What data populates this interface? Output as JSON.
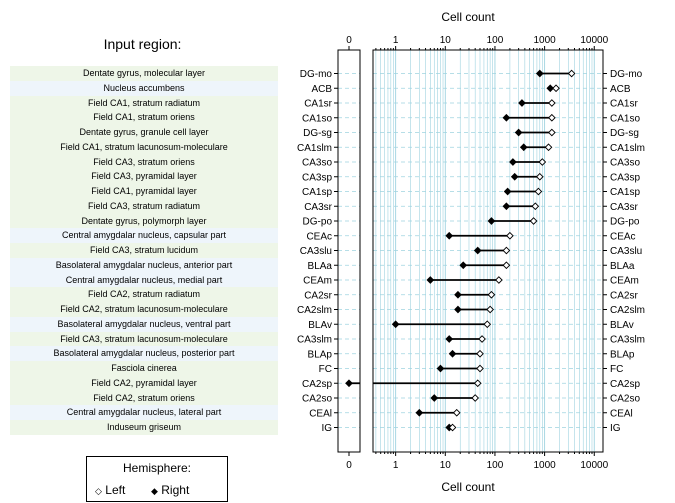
{
  "page": {
    "title": "Input region:"
  },
  "legend": {
    "title": "Hemisphere:",
    "items": [
      {
        "label": "Left",
        "marker": "open-diamond"
      },
      {
        "label": "Right",
        "marker": "filled-diamond"
      }
    ]
  },
  "colors": {
    "row_tint_green": "#eef6e8",
    "row_tint_blue": "#eef5fb",
    "grid_line": "#9fd3e0",
    "row_line": "#9fd3e0",
    "segment": "#000000"
  },
  "chart_data": {
    "type": "dot",
    "xlabel": "Cell count",
    "x_scale": "log",
    "xlim": [
      0.35,
      15000
    ],
    "zero_panel_label": "0",
    "tick_labels": [
      "1",
      "10",
      "100",
      "1000",
      "10000"
    ],
    "regions": [
      {
        "name": "Dentate gyrus, molecular layer",
        "abbr": "DG-mo",
        "left": 3500,
        "right": 800,
        "tint": "green"
      },
      {
        "name": "Nucleus accumbens",
        "abbr": "ACB",
        "left": 1700,
        "right": 1300,
        "tint": "blue"
      },
      {
        "name": "Field CA1, stratum radiatum",
        "abbr": "CA1sr",
        "left": 1400,
        "right": 350,
        "tint": "green"
      },
      {
        "name": "Field CA1, stratum oriens",
        "abbr": "CA1so",
        "left": 1400,
        "right": 170,
        "tint": "green"
      },
      {
        "name": "Dentate gyrus, granule cell layer",
        "abbr": "DG-sg",
        "left": 1400,
        "right": 300,
        "tint": "green"
      },
      {
        "name": "Field CA1, stratum lacunosum-moleculare",
        "abbr": "CA1slm",
        "left": 1200,
        "right": 380,
        "tint": "green"
      },
      {
        "name": "Field CA3, stratum oriens",
        "abbr": "CA3so",
        "left": 900,
        "right": 230,
        "tint": "green"
      },
      {
        "name": "Field CA3, pyramidal layer",
        "abbr": "CA3sp",
        "left": 800,
        "right": 250,
        "tint": "green"
      },
      {
        "name": "Field CA1, pyramidal layer",
        "abbr": "CA1sp",
        "left": 750,
        "right": 180,
        "tint": "green"
      },
      {
        "name": "Field CA3, stratum radiatum",
        "abbr": "CA3sr",
        "left": 650,
        "right": 170,
        "tint": "green"
      },
      {
        "name": "Dentate gyrus, polymorph layer",
        "abbr": "DG-po",
        "left": 600,
        "right": 85,
        "tint": "green"
      },
      {
        "name": "Central amygdalar nucleus, capsular part",
        "abbr": "CEAc",
        "left": 200,
        "right": 12,
        "tint": "blue"
      },
      {
        "name": "Field CA3, stratum lucidum",
        "abbr": "CA3slu",
        "left": 170,
        "right": 45,
        "tint": "green"
      },
      {
        "name": "Basolateral amygdalar nucleus, anterior part",
        "abbr": "BLAa",
        "left": 170,
        "right": 23,
        "tint": "blue"
      },
      {
        "name": "Central amygdalar nucleus, medial part",
        "abbr": "CEAm",
        "left": 120,
        "right": 5,
        "tint": "blue"
      },
      {
        "name": "Field CA2, stratum radiatum",
        "abbr": "CA2sr",
        "left": 85,
        "right": 18,
        "tint": "green"
      },
      {
        "name": "Field CA2, stratum lacunosum-moleculare",
        "abbr": "CA2slm",
        "left": 80,
        "right": 18,
        "tint": "green"
      },
      {
        "name": "Basolateral amygdalar nucleus, ventral part",
        "abbr": "BLAv",
        "left": 70,
        "right": 1,
        "tint": "blue"
      },
      {
        "name": "Field CA3, stratum lacunosum-moleculare",
        "abbr": "CA3slm",
        "left": 55,
        "right": 12,
        "tint": "green"
      },
      {
        "name": "Basolateral amygdalar nucleus, posterior part",
        "abbr": "BLAp",
        "left": 50,
        "right": 14,
        "tint": "blue"
      },
      {
        "name": "Fasciola cinerea",
        "abbr": "FC",
        "left": 50,
        "right": 8,
        "tint": "green"
      },
      {
        "name": "Field CA2, pyramidal layer",
        "abbr": "CA2sp",
        "left": 45,
        "right": 0,
        "tint": "green"
      },
      {
        "name": "Field CA2, stratum oriens",
        "abbr": "CA2so",
        "left": 40,
        "right": 6,
        "tint": "green"
      },
      {
        "name": "Central amygdalar nucleus, lateral part",
        "abbr": "CEAl",
        "left": 17,
        "right": 3,
        "tint": "blue"
      },
      {
        "name": "Induseum griseum",
        "abbr": "IG",
        "left": 14,
        "right": 12,
        "tint": "green"
      }
    ]
  }
}
